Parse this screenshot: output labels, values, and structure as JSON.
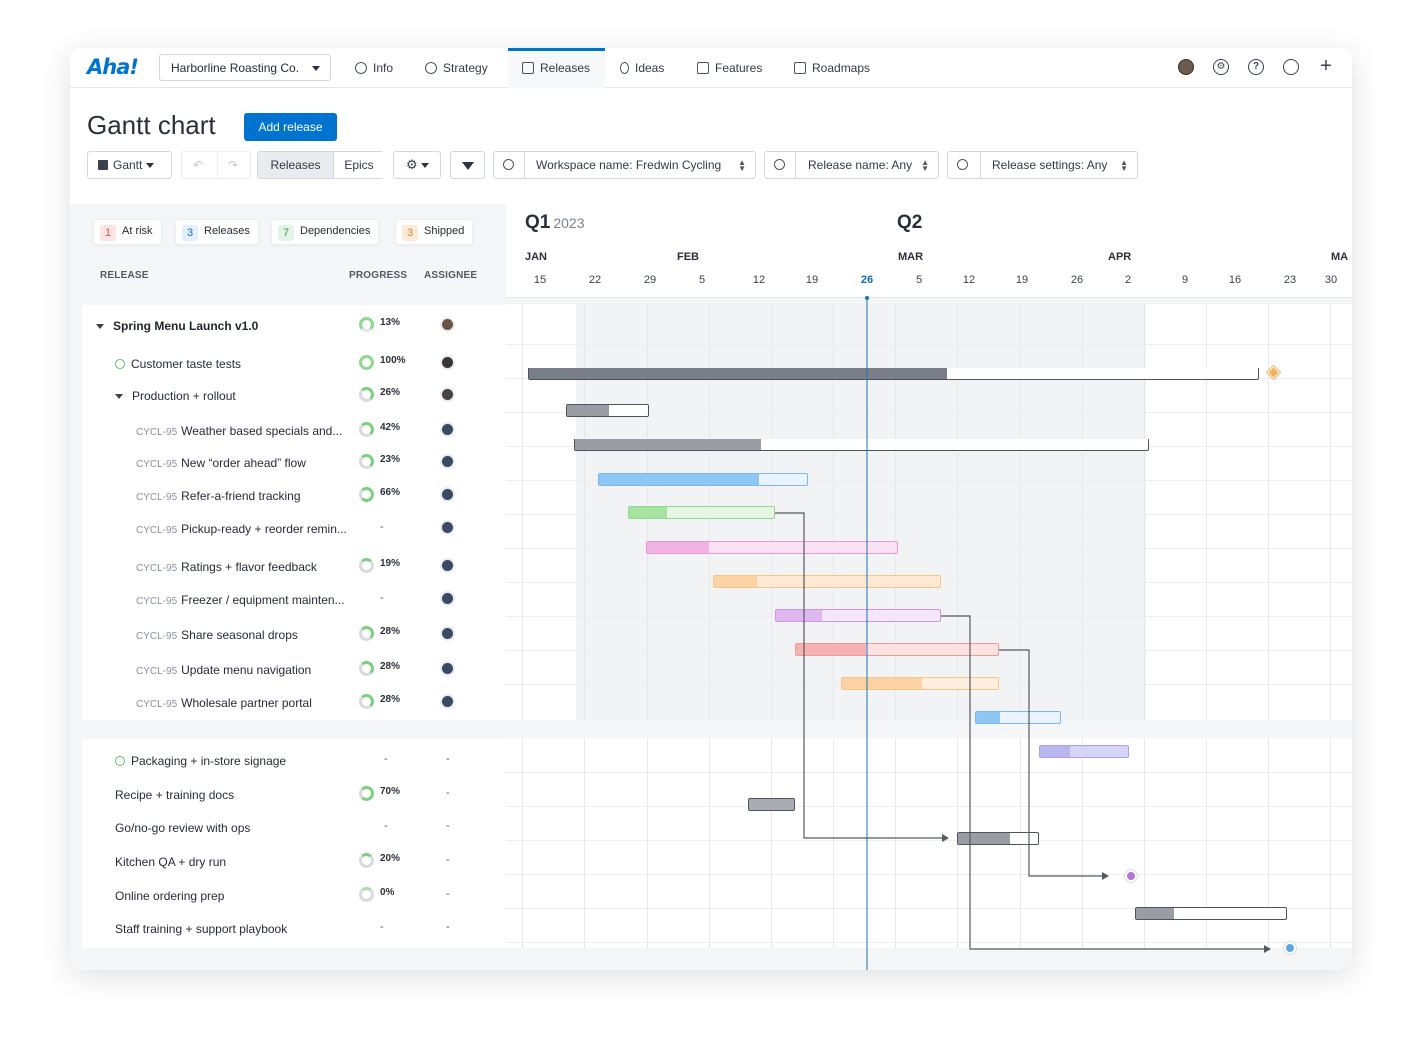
{
  "nav": {
    "logo": "Aha!",
    "workspace": "Harborline Roasting Co.",
    "tabs": [
      {
        "label": "Info",
        "icon": "info-icon"
      },
      {
        "label": "Strategy",
        "icon": "target-icon"
      },
      {
        "label": "Releases",
        "icon": "calendar-icon",
        "active": true
      },
      {
        "label": "Ideas",
        "icon": "lightbulb-icon"
      },
      {
        "label": "Features",
        "icon": "grid-icon"
      },
      {
        "label": "Roadmaps",
        "icon": "roadmap-icon"
      }
    ]
  },
  "header": {
    "title": "Gantt chart",
    "add_release": "Add release",
    "view_label": "Gantt",
    "toggle": [
      "Releases",
      "Epics"
    ],
    "filters": [
      "Workspace name: Fredwin Cycling",
      "Release name: Any",
      "Release settings: Any"
    ]
  },
  "summary": {
    "at_risk": {
      "count": "1",
      "label": "At risk"
    },
    "releases": {
      "count": "3",
      "label": "Releases"
    },
    "dependencies": {
      "count": "7",
      "label": "Dependencies"
    },
    "shipped": {
      "count": "3",
      "label": "Shipped"
    }
  },
  "columns": {
    "release": "RELEASE",
    "progress": "PROGRESS",
    "assignee": "ASSIGNEE"
  },
  "timeline": {
    "q1": "Q1",
    "year": "2023",
    "q2": "Q2",
    "months": [
      "JAN",
      "FEB",
      "MAR",
      "APR",
      "MA"
    ],
    "days": [
      "15",
      "22",
      "29",
      "5",
      "12",
      "19",
      "26",
      "5",
      "12",
      "19",
      "26",
      "2",
      "9",
      "16",
      "23",
      "30"
    ],
    "today": "26"
  },
  "group1": [
    {
      "name": "Spring Menu Launch v1.0",
      "progress": "13%",
      "level": 0,
      "expanded": true
    },
    {
      "name": "Customer taste tests",
      "progress": "100%",
      "level": 1,
      "shipped": true
    },
    {
      "name": "Production + rollout",
      "progress": "26%",
      "level": 1,
      "expanded": true
    },
    {
      "key": "CYCL-95",
      "name": "Weather based specials and...",
      "progress": "42%"
    },
    {
      "key": "CYCL-95",
      "name": "New “order ahead” flow",
      "progress": "23%"
    },
    {
      "key": "CYCL-95",
      "name": "Refer-a-friend tracking",
      "progress": "66%"
    },
    {
      "key": "CYCL-95",
      "name": "Pickup-ready + reorder remin...",
      "progress": "-"
    },
    {
      "key": "CYCL-95",
      "name": "Ratings + flavor feedback",
      "progress": "19%"
    },
    {
      "key": "CYCL-95",
      "name": "Freezer / equipment mainten...",
      "progress": "-"
    },
    {
      "key": "CYCL-95",
      "name": "Share seasonal drops",
      "progress": "28%"
    },
    {
      "key": "CYCL-95",
      "name": "Update menu navigation",
      "progress": "28%"
    },
    {
      "key": "CYCL-95",
      "name": "Wholesale partner portal",
      "progress": "28%"
    }
  ],
  "group2": [
    {
      "name": "Packaging + in-store signage",
      "progress": "-",
      "assignee": "-",
      "shipped": true
    },
    {
      "name": "Recipe + training docs",
      "progress": "70%",
      "assignee": "-"
    },
    {
      "name": "Go/no-go review with ops",
      "progress": "-",
      "assignee": "-"
    },
    {
      "name": "Kitchen QA + dry run",
      "progress": "20%",
      "assignee": "-"
    },
    {
      "name": "Online ordering prep",
      "progress": "0%",
      "assignee": "-"
    },
    {
      "name": "Staff training + support playbook",
      "progress": "-",
      "assignee": "-"
    }
  ],
  "colors": {
    "accent": "#0073cf",
    "today_line": "#1b73b8"
  }
}
